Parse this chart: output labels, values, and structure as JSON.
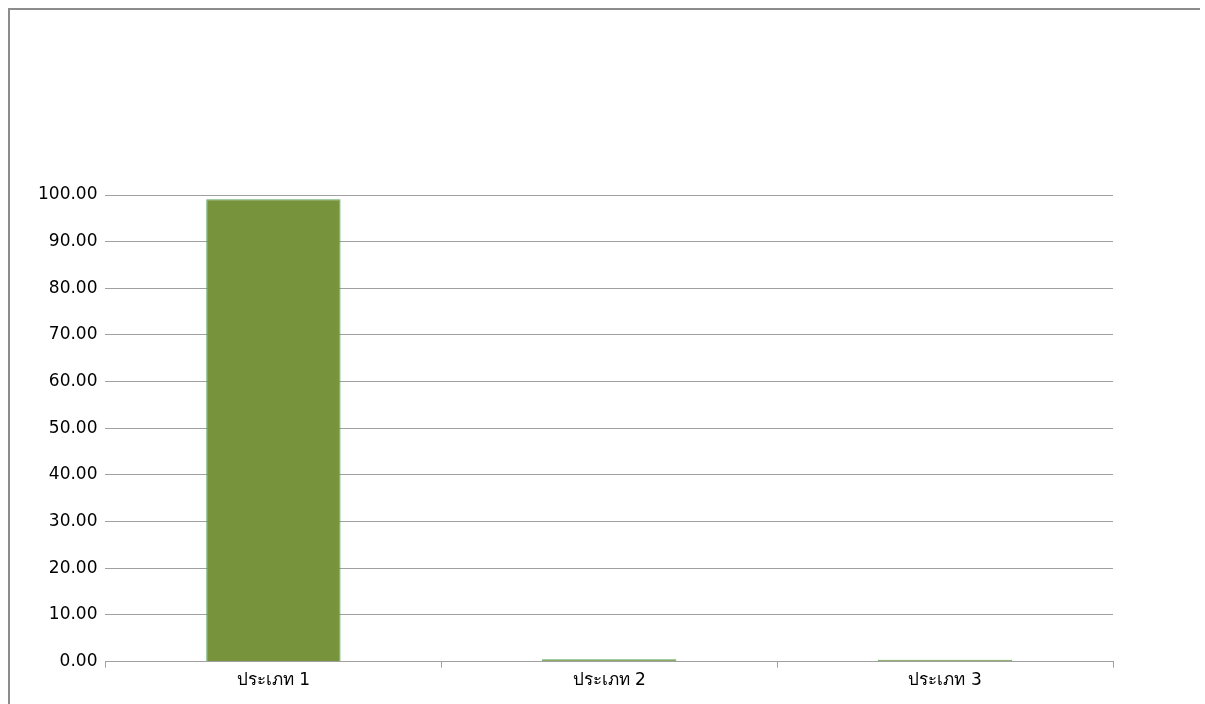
{
  "chart_data": {
    "type": "bar",
    "categories": [
      "ประเภท 1",
      "ประเภท 2",
      "ประเภท 3"
    ],
    "values": [
      99.1,
      0.5,
      0.4
    ],
    "color": "#77933c",
    "ylim": [
      0,
      100
    ],
    "yticks": [
      {
        "value": 0,
        "label": "0.00"
      },
      {
        "value": 10,
        "label": "10.00"
      },
      {
        "value": 20,
        "label": "20.00"
      },
      {
        "value": 30,
        "label": "30.00"
      },
      {
        "value": 40,
        "label": "40.00"
      },
      {
        "value": 50,
        "label": "50.00"
      },
      {
        "value": 60,
        "label": "60.00"
      },
      {
        "value": 70,
        "label": "70.00"
      },
      {
        "value": 80,
        "label": "80.00"
      },
      {
        "value": 90,
        "label": "90.00"
      },
      {
        "value": 100,
        "label": "100.00"
      }
    ],
    "grid": "y"
  }
}
